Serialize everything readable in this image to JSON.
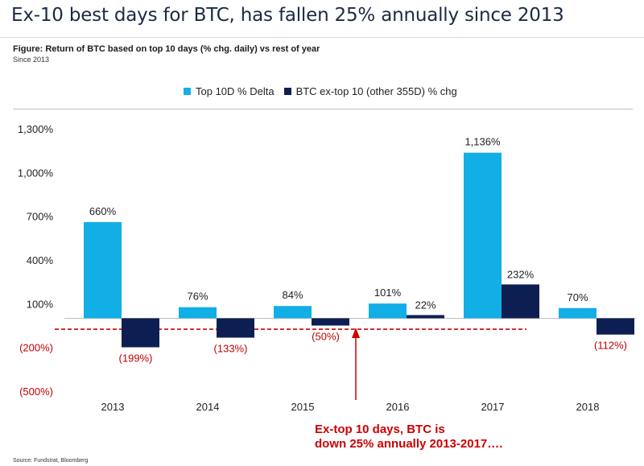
{
  "headline": "Ex-10 best days for BTC, has fallen 25% annually since 2013",
  "figure_title": "Figure: Return of BTC based on top 10 days (% chg. daily) vs rest of year",
  "figure_subtitle": "Since 2013",
  "source": "Source: Fundstrat, Bloomberg",
  "colors": {
    "series1": "#12aee6",
    "series2": "#0d1f52",
    "negative_label": "#c00000",
    "annotation": "#cc0000"
  },
  "chart_data": {
    "type": "bar",
    "categories": [
      "2013",
      "2014",
      "2015",
      "2016",
      "2017",
      "2018"
    ],
    "series": [
      {
        "name": "Top 10D % Delta",
        "values": [
          660,
          76,
          84,
          101,
          1136,
          70
        ],
        "labels": [
          "660%",
          "76%",
          "84%",
          "101%",
          "1,136%",
          "70%"
        ]
      },
      {
        "name": "BTC ex-top 10 (other 355D) % chg",
        "values": [
          -199,
          -133,
          -50,
          22,
          232,
          -112
        ],
        "labels": [
          "(199%)",
          "(133%)",
          "(50%)",
          "22%",
          "232%",
          "(112%)"
        ]
      }
    ],
    "yticks": [
      "1,300%",
      "1,000%",
      "700%",
      "400%",
      "100%",
      "(200%)",
      "(500%)"
    ],
    "ytick_values": [
      1300,
      1000,
      700,
      400,
      100,
      -200,
      -500
    ],
    "ylim": [
      -500,
      1300
    ],
    "reference_line": -75,
    "annotation": {
      "line1": "Ex-top 10 days, BTC is",
      "line2": "down 25% annually 2013-2017…."
    },
    "legend_position": "top-center",
    "grid": false
  }
}
